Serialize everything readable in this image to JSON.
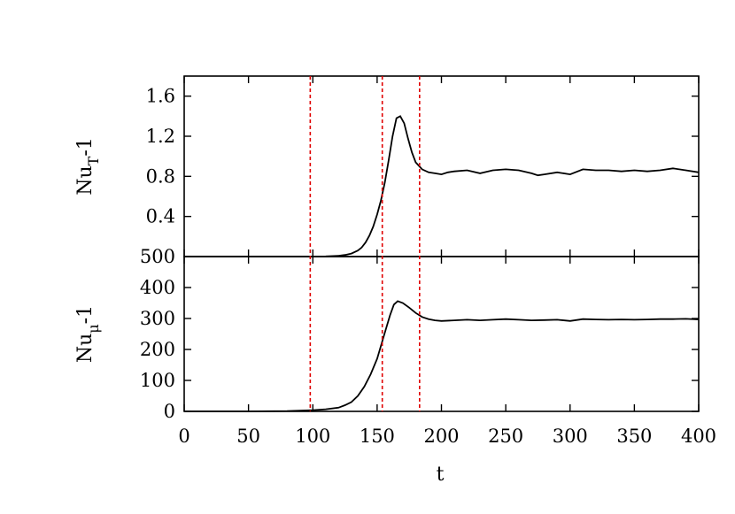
{
  "chart_data": {
    "type": "line",
    "xlabel": "t",
    "xlim": [
      0,
      400
    ],
    "xticks": [
      "0",
      "50",
      "100",
      "150",
      "200",
      "250",
      "300",
      "350",
      "400"
    ],
    "vertical_markers": {
      "x": [
        98,
        154,
        183
      ],
      "color": "#e00000",
      "style": "dashed"
    },
    "panels": [
      {
        "id": "top",
        "ylabel": {
          "main": "Nu",
          "sub": "T",
          "tail": "-1"
        },
        "ylim": [
          0,
          1.8
        ],
        "yticks": [
          "0.4",
          "0.8",
          "1.2",
          "1.6"
        ],
        "series": [
          {
            "x": [
              0,
              100,
              110,
              120,
              125,
              130,
              135,
              138,
              141,
              144,
              147,
              150,
              153,
              156,
              159,
              162,
              165,
              168,
              171,
              174,
              177,
              180,
              185,
              190,
              195,
              200,
              205,
              210,
              220,
              230,
              240,
              250,
              260,
              270,
              275,
              280,
              290,
              300,
              310,
              320,
              330,
              340,
              350,
              360,
              370,
              380,
              390,
              400
            ],
            "y": [
              0,
              0,
              0.002,
              0.008,
              0.016,
              0.03,
              0.06,
              0.09,
              0.14,
              0.21,
              0.3,
              0.42,
              0.56,
              0.74,
              0.96,
              1.2,
              1.38,
              1.4,
              1.33,
              1.18,
              1.04,
              0.94,
              0.87,
              0.84,
              0.83,
              0.82,
              0.84,
              0.85,
              0.86,
              0.83,
              0.86,
              0.87,
              0.86,
              0.83,
              0.81,
              0.82,
              0.84,
              0.82,
              0.87,
              0.86,
              0.86,
              0.85,
              0.86,
              0.85,
              0.86,
              0.88,
              0.86,
              0.84
            ]
          }
        ]
      },
      {
        "id": "bottom",
        "ylabel": {
          "main": "Nu",
          "sub": "μ",
          "tail": "-1"
        },
        "ylim": [
          0,
          500
        ],
        "yticks": [
          "0",
          "100",
          "200",
          "300",
          "400",
          "500"
        ],
        "series": [
          {
            "x": [
              0,
              50,
              80,
              100,
              110,
              120,
              125,
              130,
              135,
              140,
              145,
              150,
              155,
              160,
              163,
              166,
              170,
              175,
              180,
              185,
              190,
              195,
              200,
              210,
              220,
              230,
              240,
              250,
              260,
              270,
              280,
              290,
              300,
              310,
              320,
              330,
              340,
              350,
              360,
              370,
              380,
              390,
              400
            ],
            "y": [
              0,
              0,
              1,
              4,
              7,
              12,
              20,
              30,
              50,
              80,
              120,
              170,
              240,
              310,
              345,
              356,
              350,
              335,
              318,
              305,
              298,
              294,
              292,
              294,
              296,
              294,
              296,
              298,
              296,
              294,
              295,
              296,
              292,
              298,
              297,
              296,
              297,
              296,
              297,
              298,
              298,
              299,
              297
            ]
          }
        ]
      }
    ]
  }
}
